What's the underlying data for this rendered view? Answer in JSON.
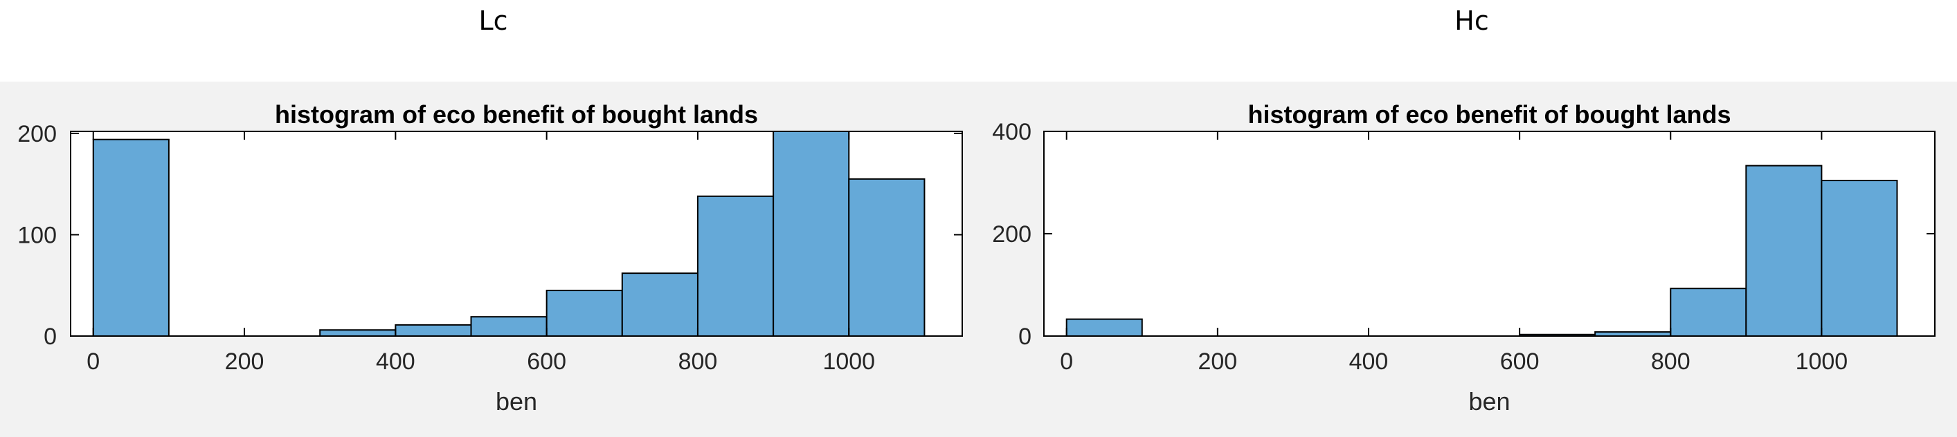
{
  "captions": {
    "left": "Lc",
    "right": "Hc"
  },
  "chart_data": [
    {
      "type": "bar",
      "title": "histogram of eco benefit of bought lands",
      "xlabel": "ben",
      "ylabel": "",
      "bin_edges": [
        0,
        100,
        200,
        300,
        400,
        500,
        600,
        700,
        800,
        900,
        1000,
        1100
      ],
      "values": [
        194,
        0,
        0,
        6,
        11,
        19,
        45,
        62,
        138,
        202,
        155
      ],
      "xlim": [
        -30,
        1150
      ],
      "ylim": [
        0,
        202
      ],
      "xticks": [
        0,
        200,
        400,
        600,
        800,
        1000
      ],
      "yticks": [
        0,
        100,
        200
      ],
      "bar_color": "#65a9d8",
      "grid": false,
      "legend": "none"
    },
    {
      "type": "bar",
      "title": "histogram of eco benefit of bought lands",
      "xlabel": "ben",
      "ylabel": "",
      "bin_edges": [
        0,
        100,
        200,
        300,
        400,
        500,
        600,
        700,
        800,
        900,
        1000,
        1100
      ],
      "values": [
        33,
        0,
        0,
        0,
        0,
        0,
        3,
        8,
        93,
        333,
        304
      ],
      "xlim": [
        -30,
        1150
      ],
      "ylim": [
        0,
        400
      ],
      "xticks": [
        0,
        200,
        400,
        600,
        800,
        1000
      ],
      "yticks": [
        0,
        200,
        400
      ],
      "bar_color": "#65a9d8",
      "grid": false,
      "legend": "none"
    }
  ]
}
